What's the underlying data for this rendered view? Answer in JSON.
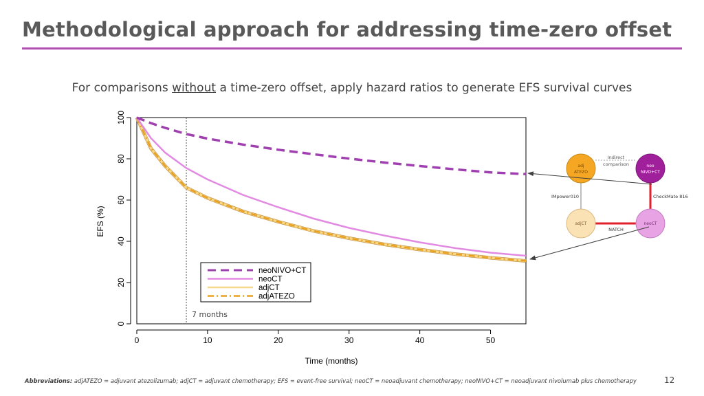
{
  "slide": {
    "title": "Methodological approach for addressing time-zero offset",
    "subtitle_before": "For comparisons",
    "subtitle_underlined": "without",
    "subtitle_after": "a time-zero offset, apply hazard ratios to generate EFS survival curves",
    "footer_label": "Abbreviations:",
    "footer_text": "adjATEZO = adjuvant atezolizumab; adjCT = adjuvant chemotherapy; EFS = event-free survival; neoCT = neoadjuvant chemotherapy; neoNIVO+CT = neoadjuvant nivolumab plus chemotherapy",
    "page_number": "12",
    "accent_color": "#b44cb4"
  },
  "chart_data": {
    "type": "line",
    "title": "",
    "xlabel": "Time (months)",
    "ylabel": "EFS (%)",
    "xlim": [
      0,
      55
    ],
    "ylim": [
      0,
      100
    ],
    "xticks": [
      0,
      10,
      20,
      30,
      40,
      50
    ],
    "yticks": [
      0,
      20,
      40,
      60,
      80,
      100
    ],
    "grid": false,
    "legend_position": "bottom-center",
    "annotation": {
      "text": "7 months",
      "x": 7
    },
    "series": [
      {
        "name": "neoNIVO+CT",
        "color": "#a040b0",
        "dash": "dashed",
        "x": [
          0,
          2,
          4,
          7,
          10,
          15,
          20,
          25,
          30,
          35,
          40,
          45,
          50,
          55
        ],
        "y": [
          100,
          97.3,
          95.0,
          92.0,
          89.8,
          86.9,
          84.4,
          82.2,
          80.1,
          78.2,
          76.5,
          74.9,
          73.4,
          72.6
        ]
      },
      {
        "name": "neoCT",
        "color": "#e28ae2",
        "dash": "solid",
        "x": [
          0,
          2,
          4,
          7,
          10,
          15,
          20,
          25,
          30,
          35,
          40,
          45,
          50,
          55
        ],
        "y": [
          100,
          90.0,
          83.0,
          75.5,
          70.0,
          62.5,
          56.5,
          51.0,
          46.5,
          42.8,
          39.5,
          36.7,
          34.5,
          33.0
        ]
      },
      {
        "name": "adjCT",
        "color": "#f6d88a",
        "dash": "solid",
        "x": [
          0,
          2,
          4,
          7,
          10,
          15,
          20,
          25,
          30,
          35,
          40,
          45,
          50,
          55
        ],
        "y": [
          100,
          85.0,
          76.5,
          66.0,
          61.0,
          54.5,
          49.5,
          45.0,
          41.5,
          38.5,
          36.0,
          33.8,
          32.0,
          30.5
        ]
      },
      {
        "name": "adjATEZO",
        "color": "#e8a020",
        "dash": "dashdot",
        "x": [
          0,
          2,
          4,
          7,
          10,
          15,
          20,
          25,
          30,
          35,
          40,
          45,
          50,
          55
        ],
        "y": [
          100,
          85.0,
          76.5,
          66.0,
          61.0,
          54.5,
          49.5,
          45.0,
          41.5,
          38.5,
          36.0,
          33.8,
          32.0,
          30.5
        ]
      }
    ]
  },
  "network": {
    "top_link_label_1": "Indirect",
    "top_link_label_2": "comparison",
    "nodes": [
      {
        "id": "adjATEZO",
        "line1": "adj",
        "line2": "ATEZO",
        "fill": "#f5a623",
        "stroke": "#c48a1a",
        "text_color": "#7a4a00"
      },
      {
        "id": "neoNIVO",
        "line1": "neo",
        "line2": "NIVO+CT",
        "fill": "#a0209c",
        "stroke": "#7e1a7a",
        "text_color": "#ffffff"
      },
      {
        "id": "adjCT",
        "line1": "adjCT",
        "line2": "",
        "fill": "#fbe2b4",
        "stroke": "#d9b880",
        "text_color": "#7a5a2a"
      },
      {
        "id": "neoCT",
        "line1": "neoCT",
        "line2": "",
        "fill": "#e7a3e3",
        "stroke": "#c27dc0",
        "text_color": "#7a2a78"
      }
    ],
    "edge_labels": {
      "left": "IMpower010",
      "right": "CheckMate 816",
      "bottom": "NATCH"
    },
    "edge_color": "#e0202a"
  }
}
